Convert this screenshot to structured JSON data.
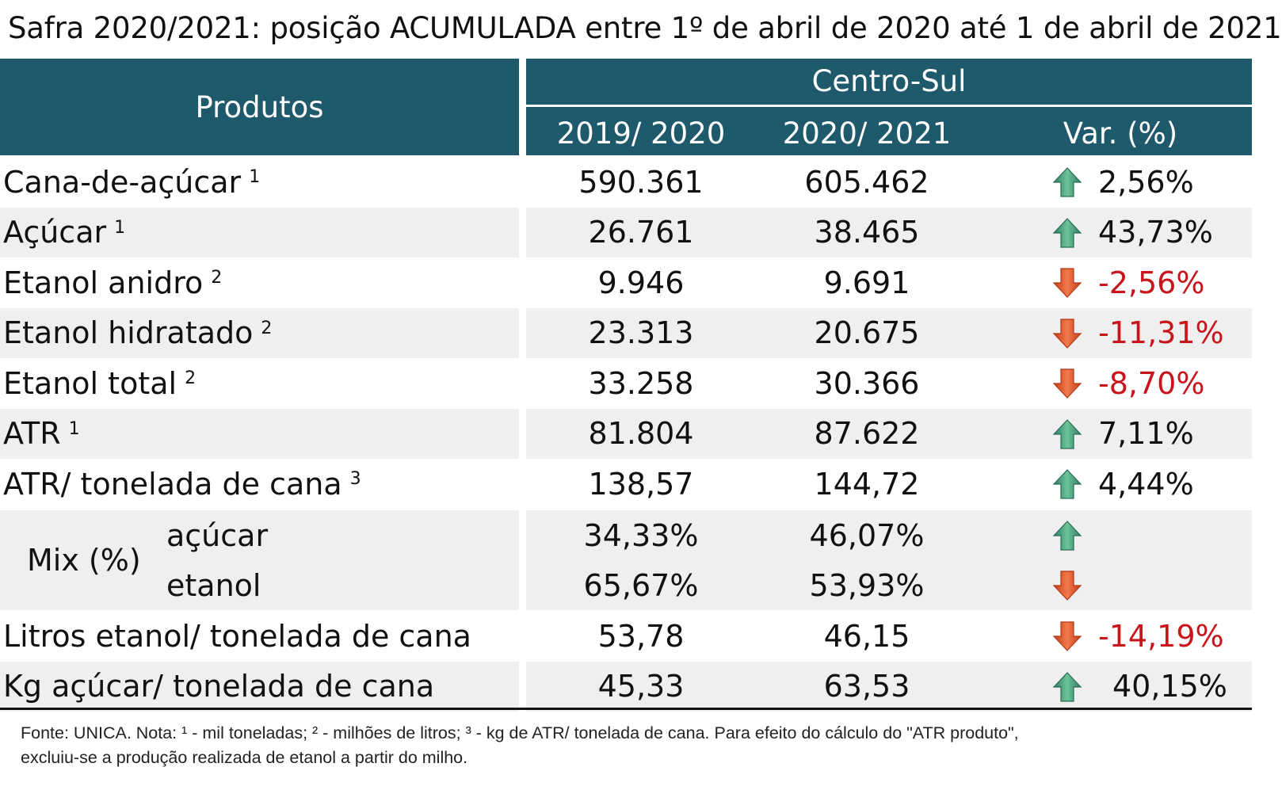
{
  "title": "Safra 2020/2021: posição ACUMULADA entre 1º de abril de 2020 até 1 de abril de 2021",
  "header": {
    "produtos": "Produtos",
    "group": "Centro-Sul",
    "col1": "2019/ 2020",
    "col2": "2020/ 2021",
    "col3": "Var. (%)"
  },
  "colors": {
    "header_bg": "#1e5a6b",
    "up_arrow": "#3a8f6f",
    "down_arrow": "#e05a2e",
    "negative_text": "#c8151b"
  },
  "rows": [
    {
      "label": "Cana-de-açúcar",
      "note": "1",
      "v1": "590.361",
      "v2": "605.462",
      "dir": "up-arrow-icon",
      "var": "2,56%"
    },
    {
      "label": "Açúcar",
      "note": "1",
      "v1": "26.761",
      "v2": "38.465",
      "dir": "up-arrow-icon",
      "var": "43,73%"
    },
    {
      "label": "Etanol anidro",
      "note": "2",
      "v1": "9.946",
      "v2": "9.691",
      "dir": "down-arrow-icon",
      "var": "-2,56%"
    },
    {
      "label": "Etanol hidratado",
      "note": "2",
      "v1": "23.313",
      "v2": "20.675",
      "dir": "down-arrow-icon",
      "var": "-11,31%"
    },
    {
      "label": "Etanol total",
      "note": "2",
      "v1": "33.258",
      "v2": "30.366",
      "dir": "down-arrow-icon",
      "var": "-8,70%"
    },
    {
      "label": "ATR",
      "note": "1",
      "v1": "81.804",
      "v2": "87.622",
      "dir": "up-arrow-icon",
      "var": "7,11%"
    },
    {
      "label": "ATR/ tonelada de cana",
      "note": "3",
      "v1": "138,57",
      "v2": "144,72",
      "dir": "up-arrow-icon",
      "var": "4,44%"
    }
  ],
  "mix": {
    "label": "Mix (%)",
    "acucar": {
      "label": "açúcar",
      "v1": "34,33%",
      "v2": "46,07%",
      "dir": "up-arrow-icon"
    },
    "etanol": {
      "label": "etanol",
      "v1": "65,67%",
      "v2": "53,93%",
      "dir": "down-arrow-icon"
    }
  },
  "rows2": [
    {
      "label": "Litros etanol/ tonelada de cana",
      "v1": "53,78",
      "v2": "46,15",
      "dir": "down-arrow-icon",
      "var": "-14,19%"
    },
    {
      "label": "Kg açúcar/ tonelada de cana",
      "v1": "45,33",
      "v2": "63,53",
      "dir": "up-arrow-icon",
      "var": "40,15%"
    }
  ],
  "footnote": {
    "line1": "Fonte: UNICA. Nota: ¹ - mil toneladas; ² - milhões de litros; ³ - kg de ATR/ tonelada de cana. Para efeito do cálculo do \"ATR produto\",",
    "line2": "excluiu-se a produção realizada de etanol a partir do milho."
  }
}
